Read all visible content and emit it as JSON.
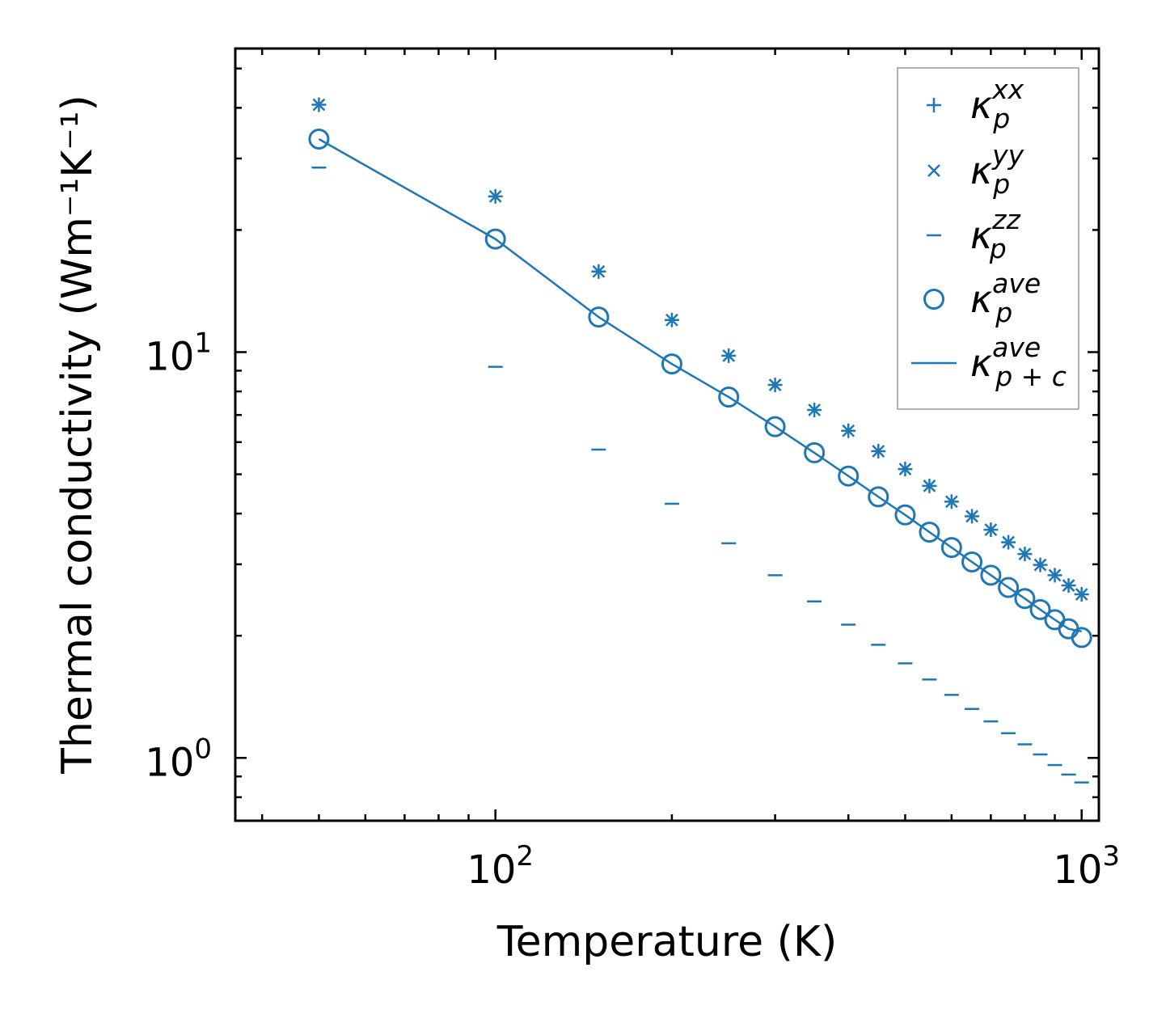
{
  "chart_data": {
    "type": "scatter",
    "scale": {
      "x": "log",
      "y": "log"
    },
    "xlabel": "Temperature (K)",
    "ylabel": "Thermal conductivity (Wm⁻¹K⁻¹)",
    "xlim": [
      36,
      1070
    ],
    "ylim": [
      0.7,
      56
    ],
    "color": "#1f77b4",
    "x_ticks": [
      {
        "value": 100,
        "base": "10",
        "exp": "2"
      },
      {
        "value": 1000,
        "base": "10",
        "exp": "3"
      }
    ],
    "y_ticks": [
      {
        "value": 1,
        "base": "10",
        "exp": "0"
      },
      {
        "value": 10,
        "base": "10",
        "exp": "1"
      }
    ],
    "x": [
      50,
      100,
      150,
      200,
      250,
      300,
      350,
      400,
      450,
      500,
      550,
      600,
      650,
      700,
      750,
      800,
      850,
      900,
      950,
      1000
    ],
    "series": [
      {
        "name": "κ_p^xx",
        "marker": "plus",
        "values": [
          40.7,
          24.2,
          15.8,
          12.0,
          9.8,
          8.3,
          7.2,
          6.4,
          5.7,
          5.15,
          4.68,
          4.28,
          3.94,
          3.65,
          3.4,
          3.18,
          2.99,
          2.82,
          2.66,
          2.53
        ]
      },
      {
        "name": "κ_p^yy",
        "marker": "x",
        "values": [
          40.7,
          24.2,
          15.8,
          12.0,
          9.8,
          8.3,
          7.2,
          6.4,
          5.7,
          5.15,
          4.68,
          4.28,
          3.94,
          3.65,
          3.4,
          3.18,
          2.99,
          2.82,
          2.66,
          2.53
        ]
      },
      {
        "name": "κ_p^zz",
        "marker": "hline",
        "values": [
          28.5,
          9.2,
          5.75,
          4.23,
          3.38,
          2.82,
          2.43,
          2.13,
          1.9,
          1.71,
          1.56,
          1.43,
          1.32,
          1.23,
          1.15,
          1.08,
          1.02,
          0.96,
          0.91,
          0.87
        ]
      },
      {
        "name": "κ_p^ave",
        "marker": "circle",
        "values": [
          33.5,
          19.0,
          12.2,
          9.35,
          7.75,
          6.55,
          5.65,
          4.95,
          4.4,
          3.97,
          3.6,
          3.3,
          3.04,
          2.82,
          2.63,
          2.47,
          2.32,
          2.19,
          2.08,
          1.98
        ]
      },
      {
        "name": "κ_p+c^ave",
        "marker": "line",
        "values": [
          33.5,
          19.0,
          12.2,
          9.35,
          7.75,
          6.55,
          5.65,
          4.95,
          4.4,
          3.97,
          3.6,
          3.3,
          3.04,
          2.82,
          2.63,
          2.47,
          2.32,
          2.19,
          2.08,
          2.05
        ]
      }
    ],
    "legend": {
      "placement": "top-right",
      "entries": [
        {
          "kappa": "κ",
          "sub": "p",
          "sup": "xx"
        },
        {
          "kappa": "κ",
          "sub": "p",
          "sup": "yy"
        },
        {
          "kappa": "κ",
          "sub": "p",
          "sup": "zz"
        },
        {
          "kappa": "κ",
          "sub": "p",
          "sup": "ave"
        },
        {
          "kappa": "κ",
          "sub": "p + c",
          "sup": "ave"
        }
      ]
    }
  }
}
